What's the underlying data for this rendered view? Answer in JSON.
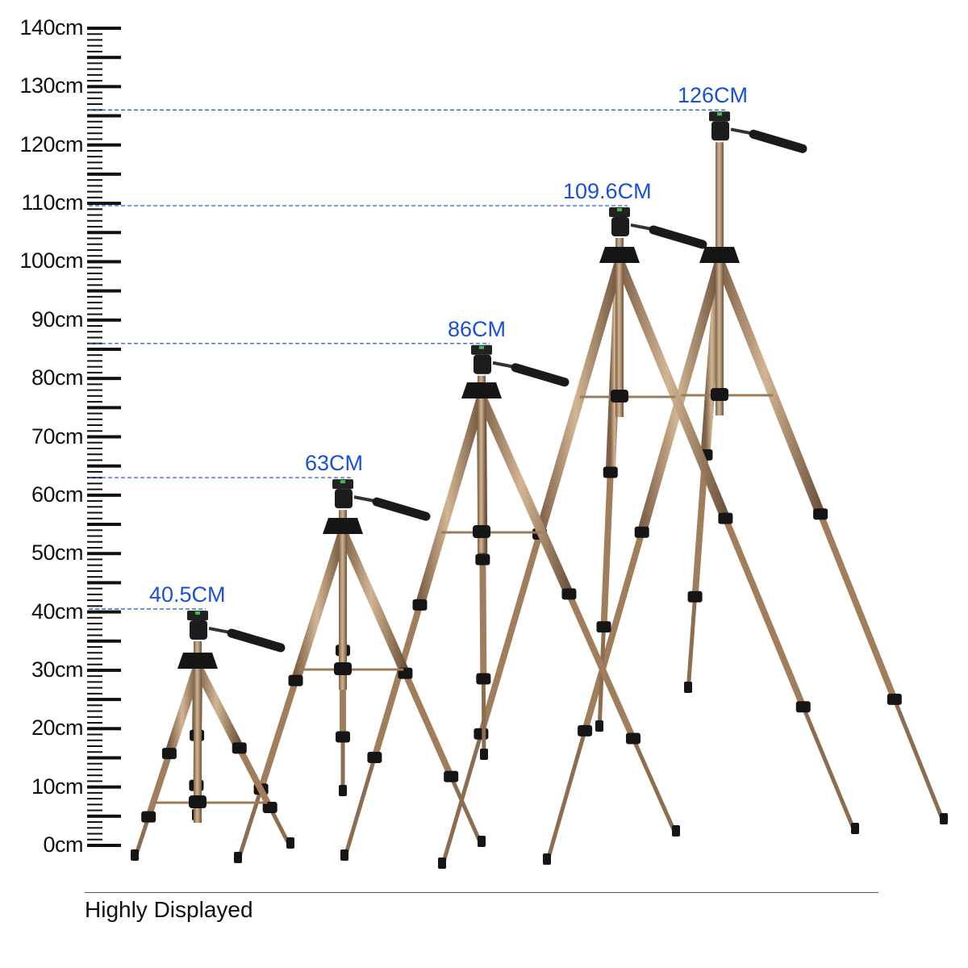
{
  "ruler": {
    "unit": "cm",
    "labels": [
      "140cm",
      "130cm",
      "120cm",
      "110cm",
      "100cm",
      "90cm",
      "80cm",
      "70cm",
      "60cm",
      "50cm",
      "40cm",
      "30cm",
      "20cm",
      "10cm",
      "0cm"
    ],
    "max_cm": 140,
    "minor_step_cm": 1,
    "major_step_cm": 5
  },
  "tripods": [
    {
      "height_cm": 40.5,
      "label": "40.5CM"
    },
    {
      "height_cm": 63,
      "label": "63CM"
    },
    {
      "height_cm": 86,
      "label": "86CM"
    },
    {
      "height_cm": 109.6,
      "label": "109.6CM"
    },
    {
      "height_cm": 126,
      "label": "126CM"
    }
  ],
  "colors": {
    "label_blue": "#1a4fd6",
    "dash_line": "#2a5bd8",
    "leg_tan": "#b3916d",
    "black": "#151515"
  },
  "caption": "Highly Displayed"
}
